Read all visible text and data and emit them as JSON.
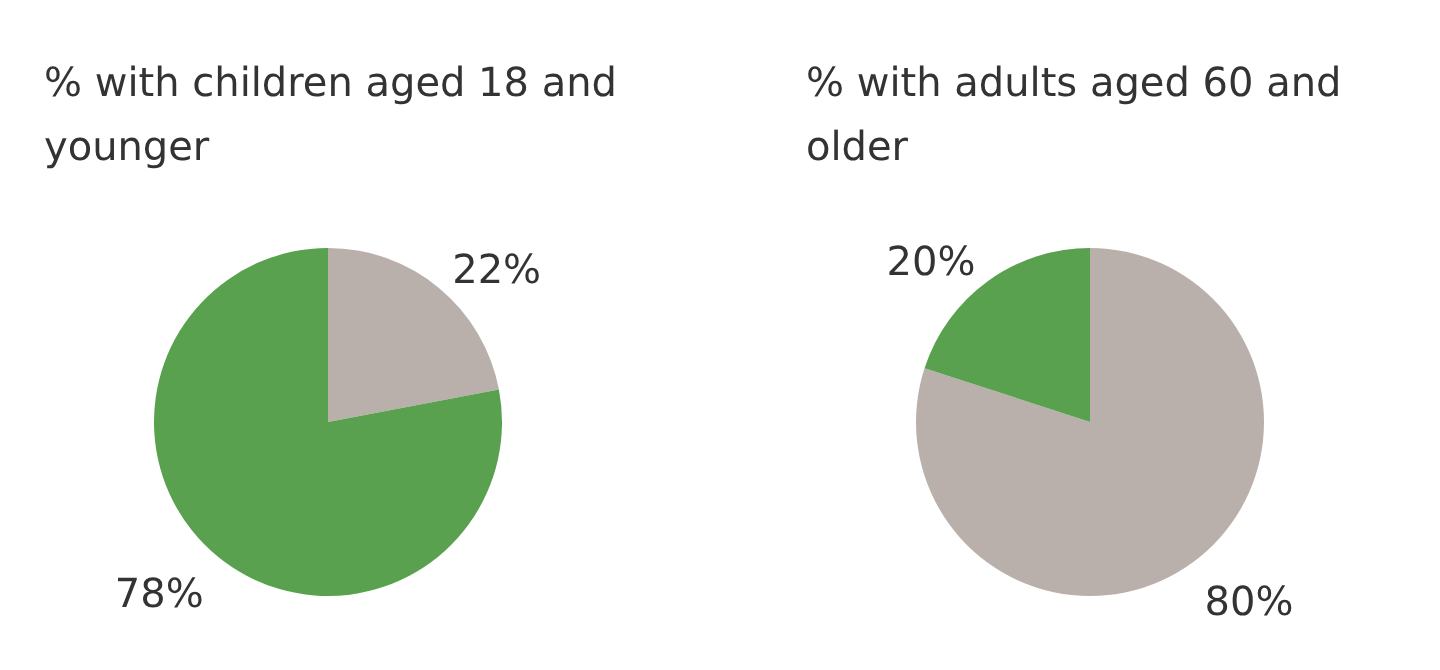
{
  "chart_data": [
    {
      "type": "pie",
      "title": "% with children aged 18 and younger",
      "categories": [
        null,
        null
      ],
      "values": [
        22,
        78
      ],
      "colors": [
        "#bab0ab",
        "#59a14f"
      ],
      "value_labels": [
        "22%",
        "78%"
      ]
    },
    {
      "type": "pie",
      "title": "% with adults aged 60 and older",
      "categories": [
        null,
        null
      ],
      "values": [
        80,
        20
      ],
      "colors": [
        "#bab0ab",
        "#59a14f"
      ],
      "value_labels": [
        "80%",
        "20%"
      ]
    }
  ]
}
